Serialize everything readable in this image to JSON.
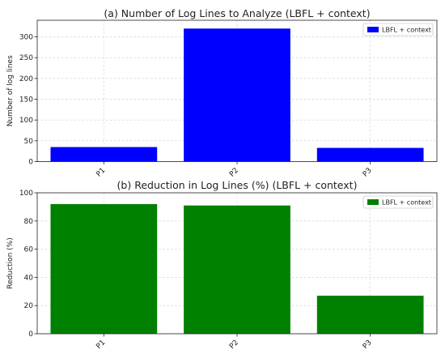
{
  "chart_data": [
    {
      "type": "bar",
      "title": "(a) Number of Log Lines to Analyze (LBFL + context)",
      "xlabel": "",
      "ylabel": "Number of log lines",
      "categories": [
        "P1",
        "P2",
        "P3"
      ],
      "series": [
        {
          "name": "LBFL + context",
          "values": [
            35,
            320,
            33
          ],
          "color": "#0000ff"
        }
      ],
      "ylim": [
        0,
        340
      ],
      "yticks": [
        0,
        50,
        100,
        150,
        200,
        250,
        300
      ],
      "grid": true,
      "legend": "top-right"
    },
    {
      "type": "bar",
      "title": "(b) Reduction in Log Lines (%) (LBFL + context)",
      "xlabel": "",
      "ylabel": "Reduction (%)",
      "categories": [
        "P1",
        "P2",
        "P3"
      ],
      "series": [
        {
          "name": "LBFL + context",
          "values": [
            92,
            91,
            27
          ],
          "color": "#008000"
        }
      ],
      "ylim": [
        0,
        100
      ],
      "yticks": [
        0,
        20,
        40,
        60,
        80,
        100
      ],
      "grid": true,
      "legend": "top-right"
    }
  ]
}
